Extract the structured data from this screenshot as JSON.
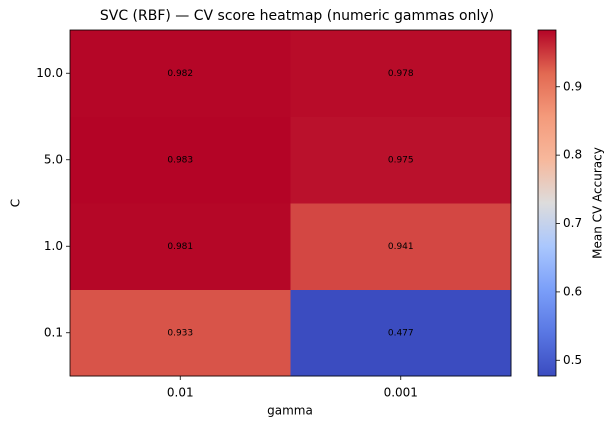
{
  "chart_data": {
    "type": "heatmap",
    "title": "SVC (RBF) — CV score heatmap (numeric gammas only)",
    "x_label": "gamma",
    "y_label": "C",
    "x_categories": [
      "0.01",
      "0.001"
    ],
    "y_categories": [
      "0.1",
      "1.0",
      "5.0",
      "10.0"
    ],
    "values": [
      [
        0.933,
        0.477
      ],
      [
        0.981,
        0.941
      ],
      [
        0.983,
        0.975
      ],
      [
        0.982,
        0.978
      ]
    ],
    "colormap": "coolwarm",
    "colorbar_label": "Mean CV Accuracy",
    "clim": [
      0.477,
      0.983
    ],
    "cticks": [
      0.5,
      0.6,
      0.7,
      0.8,
      0.9
    ]
  }
}
